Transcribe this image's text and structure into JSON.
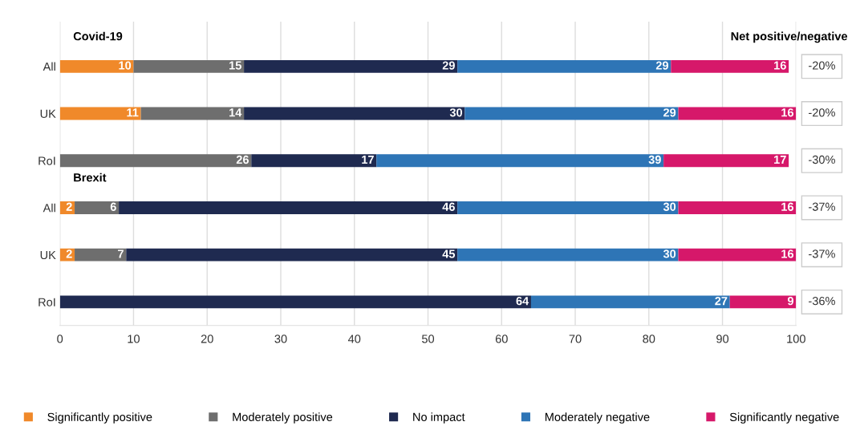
{
  "chart_data": {
    "type": "bar",
    "orientation": "horizontal",
    "stacked": true,
    "data_labels": true,
    "grid": "x",
    "legend": "bottom",
    "marker": "square",
    "categories": [
      "All",
      "UK",
      "RoI",
      "All",
      "UK",
      "RoI"
    ],
    "series": [
      {
        "name": "Significantly positive",
        "color": "#f0892a",
        "values": [
          10,
          11,
          null,
          2,
          2,
          null
        ]
      },
      {
        "name": "Moderately positive",
        "color": "#6e6e6e",
        "values": [
          15,
          14,
          26,
          6,
          7,
          null
        ]
      },
      {
        "name": "No impact",
        "color": "#1f2a50",
        "values": [
          29,
          30,
          17,
          46,
          45,
          64
        ]
      },
      {
        "name": "Moderately negative",
        "color": "#2e75b6",
        "values": [
          29,
          29,
          39,
          30,
          30,
          27
        ]
      },
      {
        "name": "Significantly negative",
        "color": "#d6186a",
        "values": [
          16,
          16,
          17,
          16,
          16,
          9
        ]
      }
    ],
    "xlim": [
      0,
      100
    ],
    "xticks": [
      0,
      10,
      20,
      30,
      40,
      50,
      60,
      70,
      80,
      90,
      100
    ],
    "annotations": [
      "Covid-19",
      "Brexit",
      "Net positive/negative",
      "-20%",
      "-20%",
      "-30%",
      "-37%",
      "-37%",
      "-36%"
    ]
  }
}
